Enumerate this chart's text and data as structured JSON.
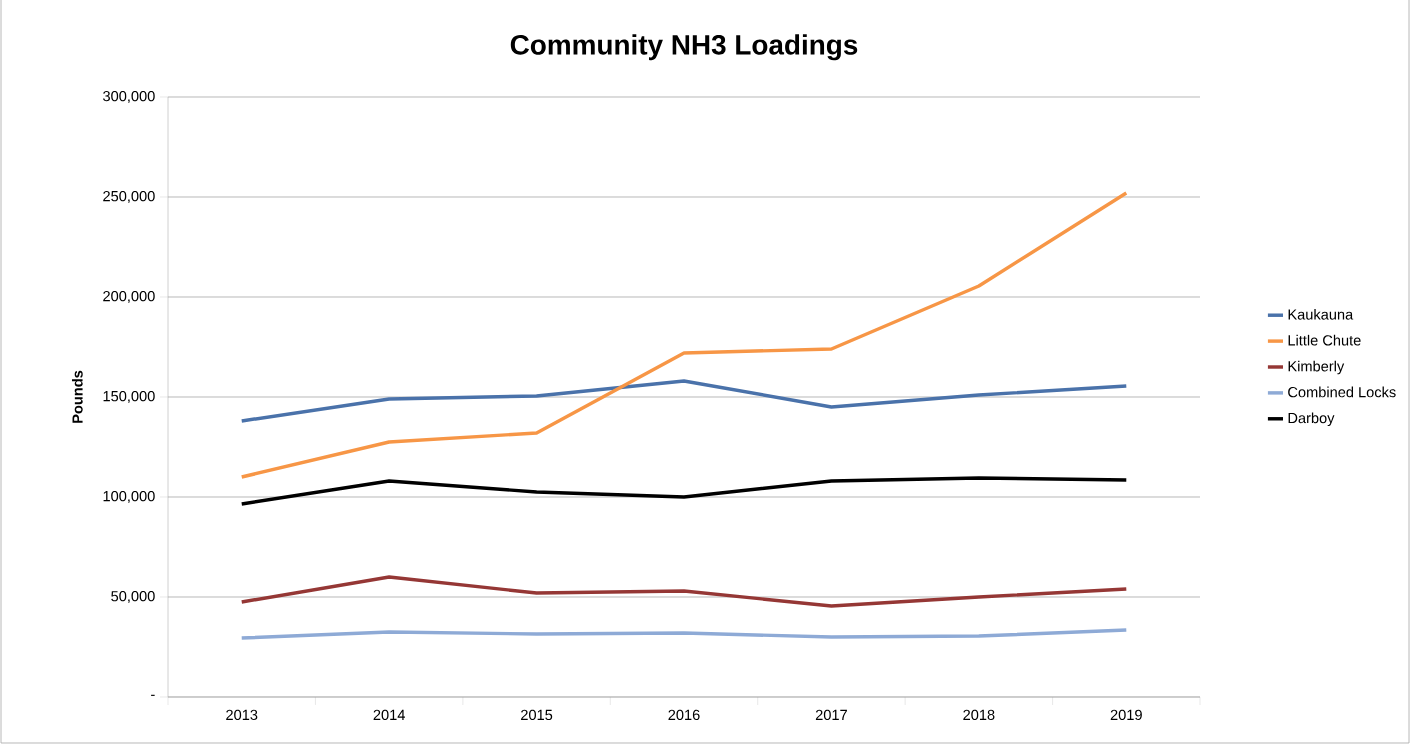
{
  "chart_data": {
    "type": "line",
    "title": "Community NH3 Loadings",
    "ylabel": "Pounds",
    "categories": [
      "2013",
      "2014",
      "2015",
      "2016",
      "2017",
      "2018",
      "2019"
    ],
    "series": [
      {
        "name": "Kaukauna",
        "color": "#4a72aa",
        "values": [
          138000,
          149000,
          150500,
          158000,
          145000,
          151000,
          155500
        ]
      },
      {
        "name": "Little Chute",
        "color": "#f79646",
        "values": [
          110000,
          127500,
          132000,
          172000,
          174000,
          205500,
          252000
        ]
      },
      {
        "name": "Kimberly",
        "color": "#953735",
        "values": [
          47500,
          60000,
          52000,
          53000,
          45500,
          50000,
          54000
        ]
      },
      {
        "name": "Combined Locks",
        "color": "#8eaad6",
        "values": [
          29500,
          32500,
          31500,
          32000,
          30000,
          30500,
          33500
        ]
      },
      {
        "name": "Darboy",
        "color": "#000000",
        "values": [
          96500,
          108000,
          102500,
          100000,
          108000,
          109500,
          108500
        ]
      }
    ],
    "ylim": [
      0,
      300000
    ],
    "yticks": [
      {
        "value": 0,
        "label": "-"
      },
      {
        "value": 50000,
        "label": "50,000"
      },
      {
        "value": 100000,
        "label": "100,000"
      },
      {
        "value": 150000,
        "label": "150,000"
      },
      {
        "value": 200000,
        "label": "200,000"
      },
      {
        "value": 250000,
        "label": "250,000"
      },
      {
        "value": 300000,
        "label": "300,000"
      }
    ],
    "grid": "y",
    "legend": "right",
    "marker": "none",
    "line_style": "solid"
  }
}
